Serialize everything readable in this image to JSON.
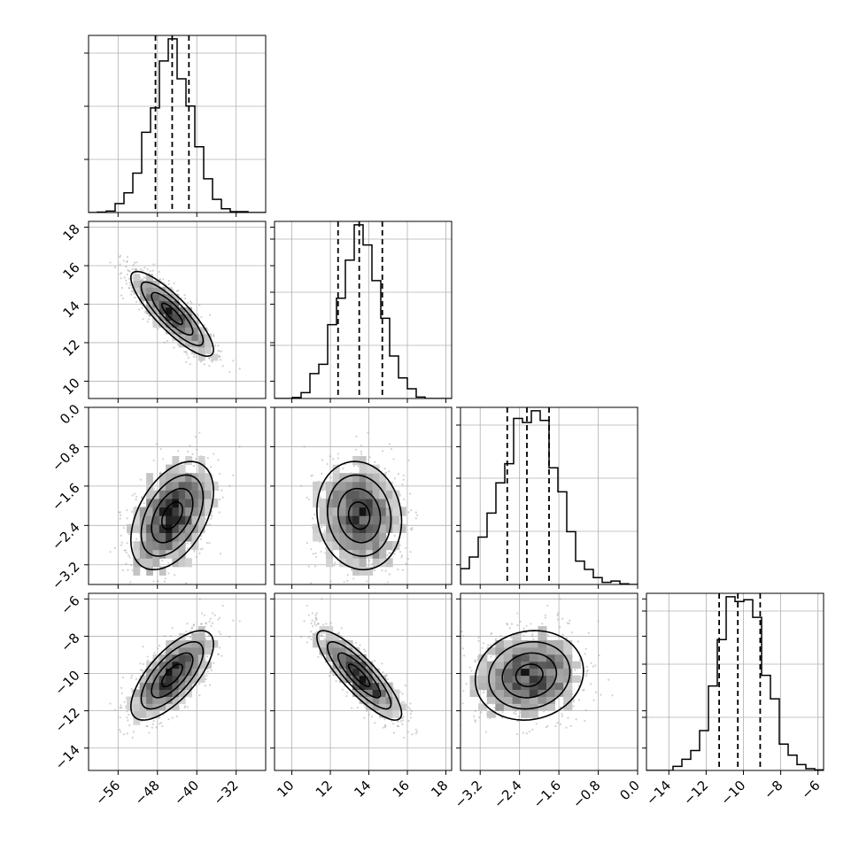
{
  "chart_data": {
    "type": "corner",
    "style": {
      "grid": true,
      "line_color": "#000000",
      "grid_color": "#b0b0b0",
      "point_color": "#9a9a9a"
    },
    "parameters": [
      {
        "mean": -45.0,
        "sd": 4.2,
        "q16": -48.4,
        "q50": -45.0,
        "q84": -41.6,
        "range": [
          -62,
          -26
        ],
        "ticks": [
          -56,
          -48,
          -40,
          -32
        ],
        "tick_labels": [
          "−56",
          "−48",
          "−40",
          "−32"
        ]
      },
      {
        "mean": 13.5,
        "sd": 1.1,
        "q16": 12.4,
        "q50": 13.5,
        "q84": 14.7,
        "range": [
          9.1,
          18.3
        ],
        "ticks": [
          10,
          12,
          14,
          16,
          18
        ],
        "tick_labels": [
          "10",
          "12",
          "14",
          "16",
          "18"
        ]
      },
      {
        "mean": -2.2,
        "sd": 0.55,
        "q16": -2.65,
        "q50": -2.25,
        "q84": -1.8,
        "range": [
          -3.6,
          0.0
        ],
        "ticks": [
          -3.2,
          -2.4,
          -1.6,
          -0.8,
          0.0
        ],
        "tick_labels": [
          "−3.2",
          "−2.4",
          "−1.6",
          "−0.8",
          "0.0"
        ]
      },
      {
        "mean": -10.1,
        "sd": 1.2,
        "q16": -11.3,
        "q50": -10.3,
        "q84": -9.1,
        "range": [
          -15.2,
          -5.7
        ],
        "ticks": [
          -14,
          -12,
          -10,
          -8,
          -6
        ],
        "tick_labels": [
          "−14",
          "−12",
          "−10",
          "−8",
          "−6"
        ]
      }
    ],
    "correlations": {
      "1-0": -0.85,
      "2-0": 0.45,
      "2-1": -0.1,
      "3-0": 0.7,
      "3-1": -0.85,
      "3-2": 0.1
    },
    "y_tick_panels": {
      "rows": [
        1,
        2,
        3
      ],
      "ticks": {
        "1": {
          "values": [
            10,
            12,
            14,
            16,
            18
          ],
          "labels": [
            "10",
            "12",
            "14",
            "16",
            "18"
          ]
        },
        "2": {
          "values": [
            -3.2,
            -2.4,
            -1.6,
            -0.8,
            0.0
          ],
          "labels": [
            "−3.2",
            "−2.4",
            "−1.6",
            "−0.8",
            "0.0"
          ]
        },
        "3": {
          "values": [
            -14,
            -12,
            -10,
            -8,
            -6
          ],
          "labels": [
            "−14",
            "−12",
            "−10",
            "−8",
            "−6"
          ]
        }
      }
    },
    "n_samples": 2000
  }
}
